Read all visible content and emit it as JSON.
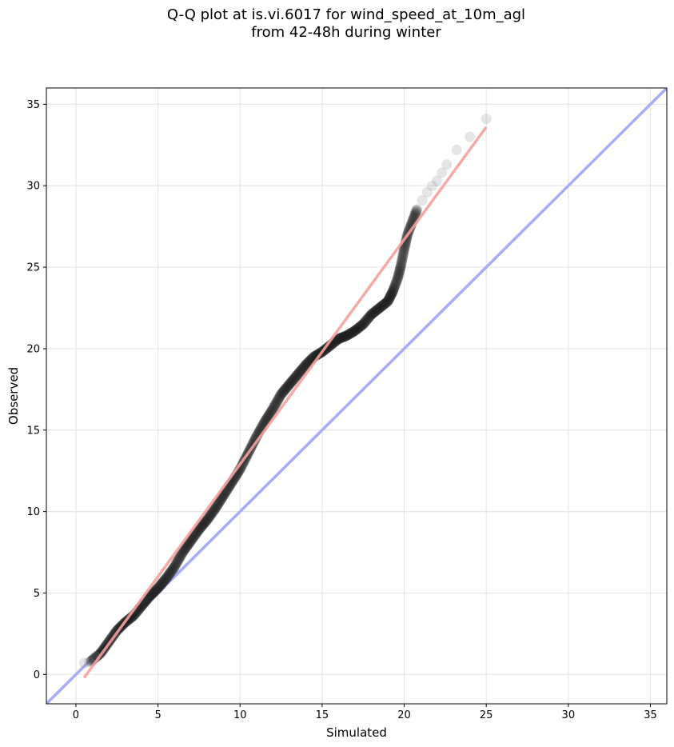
{
  "chart_data": {
    "type": "scatter",
    "title": "Q-Q plot at is.vi.6017 for wind_speed_at_10m_agl",
    "subtitle": "from 42-48h during winter",
    "xlabel": "Simulated",
    "ylabel": "Observed",
    "xlim": [
      -1.8,
      36
    ],
    "ylim": [
      -1.8,
      36
    ],
    "xticks": [
      0,
      5,
      10,
      15,
      20,
      25,
      30,
      35
    ],
    "yticks": [
      0,
      5,
      10,
      15,
      20,
      25,
      30,
      35
    ],
    "grid": true,
    "colors": {
      "points": "#1a1a1a",
      "fit_line": "#f4a0a0",
      "identity_line": "#a8abf5"
    },
    "fit_line": {
      "x": [
        0.5,
        25.0
      ],
      "y": [
        -0.2,
        33.6
      ]
    },
    "identity_line": {
      "x": [
        -1.8,
        36
      ],
      "y": [
        -1.8,
        36
      ]
    },
    "quantile_curve": {
      "x": [
        0.9,
        1.5,
        2.0,
        2.5,
        3.0,
        3.5,
        4.0,
        4.5,
        5.0,
        5.5,
        6.0,
        6.5,
        7.0,
        7.5,
        8.0,
        8.5,
        9.0,
        9.5,
        10.0,
        10.5,
        11.0,
        11.5,
        12.0,
        12.5,
        13.0,
        13.5,
        14.0,
        14.5,
        15.0,
        15.5,
        16.0,
        16.5,
        17.0,
        17.5,
        18.0,
        18.5,
        19.0,
        19.3,
        19.6,
        19.8,
        20.0,
        20.2,
        20.5,
        20.8
      ],
      "y": [
        0.8,
        1.3,
        2.0,
        2.7,
        3.2,
        3.6,
        4.2,
        4.8,
        5.3,
        5.9,
        6.6,
        7.5,
        8.2,
        8.9,
        9.5,
        10.2,
        11.0,
        11.8,
        12.6,
        13.6,
        14.6,
        15.5,
        16.3,
        17.2,
        17.8,
        18.4,
        19.0,
        19.5,
        19.8,
        20.2,
        20.6,
        20.8,
        21.1,
        21.5,
        22.1,
        22.5,
        22.9,
        23.5,
        24.3,
        25.1,
        26.1,
        27.0,
        27.8,
        28.6
      ]
    },
    "tail_points": {
      "x": [
        0.5,
        0.8,
        1.2,
        21.1,
        21.4,
        21.7,
        22.0,
        22.3,
        22.6,
        23.2,
        24.0,
        25.0
      ],
      "y": [
        0.7,
        0.75,
        1.1,
        29.1,
        29.6,
        30.0,
        30.3,
        30.8,
        31.3,
        32.2,
        33.0,
        34.1
      ]
    }
  }
}
